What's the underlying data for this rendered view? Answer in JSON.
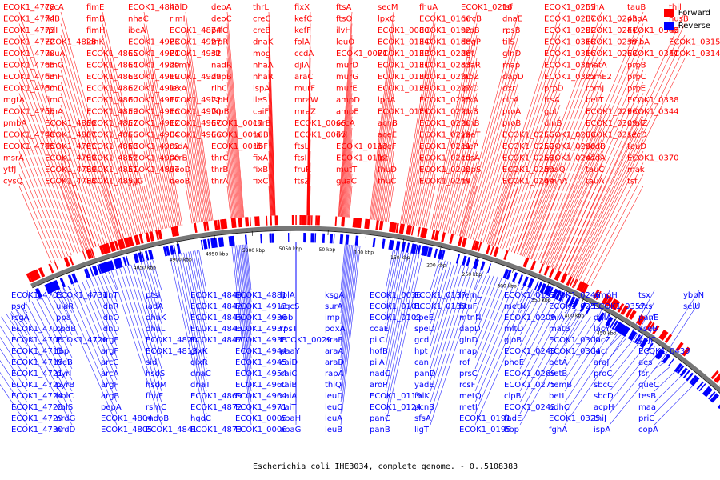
{
  "title": "Escherichia coli IHE3034, complete genome. - 0..5108383",
  "legend": [
    {
      "label": "Forward",
      "color": "#ff0000"
    },
    {
      "label": "Reverse",
      "color": "#0000ff"
    }
  ],
  "colors": {
    "forward": "#ff0000",
    "reverse": "#0000ff",
    "backbone": "#777777"
  },
  "ticks": [
    "4850 kbp",
    "4900 kbp",
    "4950 kbp",
    "5000 kbp",
    "5050 kbp",
    "50 kbp",
    "100 kbp",
    "150 kbp",
    "200 kbp",
    "250 kbp",
    "300 kbp",
    "350 kbp",
    "400 kbp",
    "450 kbp"
  ],
  "forward_labels": [
    "ECOK1_4778",
    "ECOK1_4774",
    "ECOK1_4773",
    "ECOK1_4772",
    "ECOK1_4770",
    "ECOK1_4765",
    "ECOK1_4763",
    "ECOK1_4760",
    "mgtA",
    "ECOK1_4755",
    "pmbA",
    "ECOK1_4748",
    "ECOK1_4745",
    "msrA",
    "ytfJ",
    "cysQ",
    "cycA",
    "fklB",
    "rplI",
    "ECOK1_4828",
    "uxuA",
    "fimG",
    "fimF",
    "fimD",
    "fimC",
    "fimA",
    "ECOK1_4809",
    "ECOK1_4807",
    "ECOK1_4791",
    "ECOK1_4799",
    "ECOK1_4789",
    "ECOK1_4788",
    "fimE",
    "fimB",
    "fimH",
    "idnK",
    "ECOK1_4865",
    "ECOK1_4864",
    "ECOK1_4863",
    "ECOK1_4862",
    "ECOK1_4860",
    "ECOK1_4859",
    "ECOK1_4857",
    "ECOK1_4856",
    "ECOK1_4853",
    "ECOK1_4852",
    "ECOK1_4851",
    "ECOK1_4850",
    "ECOK1_4843",
    "nhaC",
    "ibeA",
    "ECOK1_4923",
    "ECOK1_4921",
    "ECOK1_4920",
    "ECOK1_4919",
    "ECOK1_4918",
    "ECOK1_4917",
    "ECOK1_4916",
    "ECOK1_4912",
    "ECOK1_4904",
    "ECOK1_4902",
    "ECOK1_4900",
    "ECOK1_4897",
    "yjjG",
    "holD",
    "rimI",
    "ECOK1_4874",
    "ECOK1_4927",
    "ECOK1_4932",
    "osmY",
    "ECOK1_4929",
    "lexA",
    "ECOK1_4972",
    "ECOK1_4970",
    "ECOK1_4967",
    "ECOK1_4966",
    "radA",
    "serB",
    "deoD",
    "deoB",
    "deoA",
    "deoC",
    "prfC",
    "trpR",
    "slt",
    "nadR",
    "dapB",
    "rihC",
    "ispH",
    "fkpB",
    "ECOK1_0017",
    "ECOK1_0016",
    "ECOK1_0015",
    "thrC",
    "thrB",
    "thrA",
    "thrL",
    "creC",
    "creB",
    "dnaK",
    "mog",
    "nhaA",
    "nhaR",
    "ispA",
    "ileS",
    "caiF",
    "carB",
    "talB",
    "ribF",
    "fixA",
    "fixB",
    "fixC",
    "fixX",
    "kefC",
    "kefF",
    "folA",
    "ccdA",
    "djlA",
    "araC",
    "murF",
    "mraW",
    "mraZ",
    "ECOK1_0066",
    "ECOK1_0065",
    "ftsL",
    "ftsI",
    "fruR",
    "ftsZ",
    "ftsA",
    "ftsQ",
    "ilvH",
    "leuO",
    "ECOK1_0071",
    "murD",
    "murG",
    "murE",
    "ampD",
    "ampE",
    "secA",
    "ilvI",
    "ECOK1_0113",
    "ECOK1_0112",
    "mutT",
    "guaC",
    "secM",
    "lpxC",
    "ECOK1_0080",
    "ECOK1_0134",
    "ECOK1_0132",
    "ECOK1_0131",
    "ECOK1_0130",
    "ECOK1_0129",
    "lpdA",
    "ECOK1_0121",
    "acnB",
    "aceE",
    "aceF",
    "lpt",
    "fhuD",
    "fhuC",
    "fhuA",
    "ECOK1_0166",
    "ECOK1_0192",
    "ECOK1_0188",
    "ECOK1_0228",
    "ECOK1_0233",
    "ECOK1_0230",
    "ECOK1_0227",
    "ECOK1_0225",
    "ECOK1_0221",
    "ECOK1_0220",
    "ECOK1_0212",
    "ECOK1_0211",
    "ECOK1_0210",
    "ECOK1_0202",
    "ECOK1_0219",
    "ECOK1_0216",
    "mrcB",
    "hrpB",
    "degP",
    "dgt",
    "cdaR",
    "fabZ",
    "lpxD",
    "lpxA",
    "lpxB",
    "rnhB",
    "yaeT",
    "rseP",
    "cdsA",
    "uppS",
    "frr",
    "tsf",
    "dnaE",
    "rpsB",
    "tilS",
    "glnD",
    "map",
    "dapD",
    "dxr",
    "clcA",
    "proA",
    "proB",
    "ECOK1_0256",
    "ECOK1_0259",
    "ECOK1_0253",
    "ECOK1_0250",
    "ECOK1_0249",
    "ECOK1_0255",
    "ECOK1_0287",
    "ECOK1_0292",
    "ECOK1_0318",
    "ECOK1_0316",
    "ECOK1_0317",
    "ECOK1_0322",
    "prpD",
    "frsA",
    "gpt",
    "dinB",
    "ECOK1_0286",
    "ECOK1_0290",
    "ECOK1_0247",
    "dnaQ",
    "gmhA",
    "rnhA",
    "ECOK1_0243",
    "ECOK1_0241",
    "ECOK1_0239",
    "ECOK1_0268",
    "matA",
    "rpmE2",
    "rpmJ",
    "betT",
    "ECOK1_0296",
    "ECOK1_0309",
    "ECOK1_0312",
    "codB",
    "codA",
    "tauC",
    "tauA",
    "tauB",
    "phoA",
    "ECOK1_0345",
    "smbA",
    "ECOK1_0341",
    "prpB",
    "prpC",
    "prpE",
    "ECOK1_0338",
    "ECOK1_0344",
    "malZ",
    "secD",
    "tauD",
    "ECOK1_0370",
    "mak",
    "tsf",
    "thil",
    "nusB",
    "tig",
    "ECOK1_0315",
    "ECOK1_0314"
  ],
  "reverse_labels": [
    "ECOK1_4703",
    "psd",
    "rsgA",
    "ECOK1_4702",
    "ECOK1_4706",
    "ECOK1_4713",
    "ECOK1_4719",
    "ECOK1_4721",
    "ECOK1_4722",
    "ECOK1_4724",
    "ECOK1_4725",
    "ECOK1_4729",
    "ECOK1_4730",
    "ECOK1_4731",
    "ulaR",
    "ppa",
    "cpdB",
    "ECOK1_4720",
    "fbp",
    "treB",
    "pyrI",
    "pyrB",
    "holC",
    "valS",
    "nrdG",
    "nrdD",
    "idnT",
    "idnR",
    "idnO",
    "idnD",
    "argE",
    "argF",
    "arcC",
    "arcA",
    "argF",
    "argB",
    "pepA",
    "ECOK1_4804",
    "ECOK1_4805",
    "ptsI",
    "iadA",
    "dhaK",
    "dhaL",
    "ECOK1_4820",
    "ECOK1_4813",
    "sid",
    "hsdS",
    "hsdM",
    "fhuF",
    "rsmC",
    "mdoB",
    "ECOK1_4841",
    "ECOK1_4849",
    "ECOK1_4842",
    "ECOK1_4845",
    "ECOK1_4846",
    "ECOK1_4847",
    "glxK",
    "glxR",
    "dnaC",
    "dnaT",
    "ECOK1_4869",
    "ECOK1_4872",
    "hgdC",
    "ECOK1_4873",
    "ECOK1_4881",
    "ECOK1_4913",
    "ECOK1_4936",
    "ECOK1_4937",
    "ECOK1_4938",
    "ECOK1_4944",
    "ECOK1_4945",
    "ECOK1_4954",
    "ECOK1_4960",
    "ECOK1_4964",
    "ECOK1_4971",
    "ECOK1_0005",
    "ECOK1_0006",
    "lplA",
    "agcS",
    "rob",
    "rpsT",
    "ECOK1_0029",
    "paaY",
    "caiD",
    "caiC",
    "caiB",
    "caiA",
    "caiT",
    "apaH",
    "apaG",
    "ksgA",
    "surA",
    "imp",
    "pdxA",
    "araB",
    "araA",
    "araD",
    "rapA",
    "thiQ",
    "leuD",
    "leuC",
    "leuA",
    "leuB",
    "ECOK1_0036",
    "ECOK1_0101",
    "ECOK1_0102",
    "coaE",
    "pilC",
    "hofB",
    "pilA",
    "nadC",
    "aroP",
    "ECOK1_0119",
    "ECOK1_0124",
    "panC",
    "panB",
    "ECOK1_0137",
    "ECOK1_0138",
    "speE",
    "speD",
    "gcd",
    "hpt",
    "can",
    "panD",
    "yadE",
    "folK",
    "pcnB",
    "sfsA",
    "ligT",
    "hemL",
    "btuF",
    "mtnN",
    "dapD",
    "glnD",
    "map",
    "rof",
    "prsC",
    "rcsF",
    "metQ",
    "metI",
    "ECOK1_0191",
    "ECOK1_0195",
    "ECOK1_0197",
    "metN",
    "ECOK1_0209",
    "mltD",
    "gloB",
    "ECOK1_0248",
    "phoE",
    "ECOK1_0269",
    "ECOK1_0275",
    "clpB",
    "ECOK1_0242",
    "fadE",
    "hbp",
    "ECOK1_0246",
    "ECOK1_0251",
    "fhiA",
    "matB",
    "ECOK1_0300",
    "ECOK1_0304",
    "betA",
    "betB",
    "hemB",
    "betI",
    "adhC",
    "ECOK1_0325",
    "fghA",
    "ampH",
    "ECOK1_0357",
    "ddlA",
    "lacY",
    "lacZ",
    "lacI",
    "araJ",
    "proC",
    "sbcC",
    "sbcD",
    "acpH",
    "thiJ",
    "ispA",
    "tsx",
    "dxs",
    "panE",
    "xseB",
    "yajC",
    "ECOK1_0439",
    "aes",
    "fsr",
    "queC",
    "tesB",
    "maa",
    "priC",
    "copA",
    "ybbN",
    "selU"
  ]
}
